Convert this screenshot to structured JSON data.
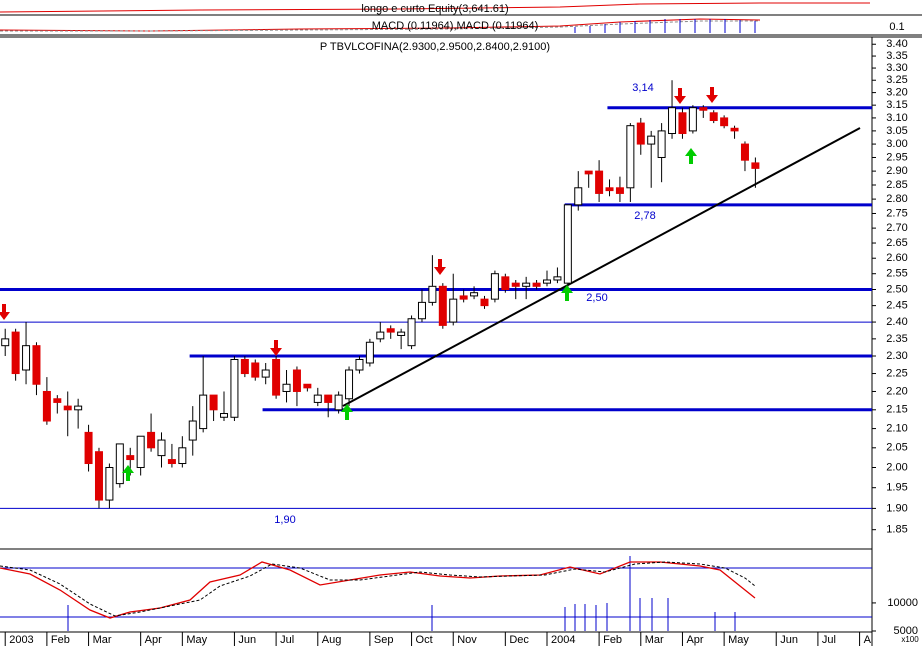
{
  "chart_data": {
    "type": "candlestick",
    "title": "P TBVLCOFINA(2.9300,2.9500,2.8400,2.9100)",
    "x": [
      0,
      1,
      2,
      3,
      4,
      5,
      6,
      7,
      8,
      9,
      10,
      11,
      12,
      13,
      14,
      15,
      16,
      17,
      18,
      19,
      20,
      21,
      22,
      23,
      24,
      25,
      26,
      27,
      28,
      29,
      30,
      31,
      32,
      33,
      34,
      35,
      36,
      37,
      38,
      39,
      40,
      41,
      42,
      43,
      44,
      45,
      46,
      47,
      48,
      49,
      50,
      51,
      52,
      53,
      54,
      55,
      56,
      57,
      58,
      59,
      60,
      61,
      62,
      63,
      64,
      65,
      66,
      67,
      68,
      69,
      70,
      71,
      72
    ],
    "open": [
      2.33,
      2.37,
      2.26,
      2.33,
      2.2,
      2.18,
      2.16,
      2.15,
      2.09,
      2.04,
      1.92,
      1.96,
      2.03,
      2.0,
      2.09,
      2.03,
      2.02,
      2.01,
      2.07,
      2.1,
      2.19,
      2.13,
      2.13,
      2.29,
      2.28,
      2.24,
      2.29,
      2.2,
      2.26,
      2.22,
      2.17,
      2.19,
      2.15,
      2.18,
      2.26,
      2.28,
      2.35,
      2.38,
      2.36,
      2.33,
      2.41,
      2.46,
      2.51,
      2.4,
      2.48,
      2.48,
      2.47,
      2.47,
      2.54,
      2.52,
      2.51,
      2.52,
      2.52,
      2.53,
      2.52,
      2.78,
      2.9,
      2.9,
      2.84,
      2.84,
      2.84,
      3.08,
      3.0,
      2.95,
      3.04,
      3.12,
      3.05,
      3.14,
      3.12,
      3.1,
      3.06,
      3.0,
      2.93
    ],
    "high": [
      2.38,
      2.38,
      2.4,
      2.34,
      2.24,
      2.19,
      2.2,
      2.18,
      2.11,
      2.05,
      2.01,
      2.06,
      2.05,
      2.08,
      2.14,
      2.09,
      2.06,
      2.08,
      2.16,
      2.3,
      2.19,
      2.2,
      2.3,
      2.3,
      2.29,
      2.28,
      2.3,
      2.26,
      2.27,
      2.22,
      2.21,
      2.19,
      2.2,
      2.27,
      2.3,
      2.35,
      2.4,
      2.39,
      2.38,
      2.42,
      2.5,
      2.61,
      2.52,
      2.55,
      2.5,
      2.51,
      2.48,
      2.56,
      2.55,
      2.53,
      2.54,
      2.53,
      2.56,
      2.57,
      2.78,
      2.9,
      2.9,
      2.94,
      2.87,
      2.88,
      3.08,
      3.1,
      3.05,
      3.08,
      3.25,
      3.14,
      3.15,
      3.15,
      3.13,
      3.11,
      3.07,
      3.01,
      2.95
    ],
    "low": [
      2.3,
      2.23,
      2.22,
      2.19,
      2.11,
      2.14,
      2.08,
      2.1,
      1.99,
      1.9,
      1.9,
      1.95,
      1.98,
      1.98,
      2.04,
      2.0,
      2.0,
      2.0,
      2.03,
      2.09,
      2.12,
      2.12,
      2.12,
      2.24,
      2.23,
      2.22,
      2.18,
      2.17,
      2.16,
      2.2,
      2.16,
      2.13,
      2.14,
      2.16,
      2.25,
      2.27,
      2.34,
      2.35,
      2.32,
      2.32,
      2.4,
      2.45,
      2.38,
      2.39,
      2.46,
      2.47,
      2.44,
      2.46,
      2.49,
      2.47,
      2.47,
      2.5,
      2.51,
      2.52,
      2.5,
      2.76,
      2.84,
      2.79,
      2.81,
      2.79,
      2.79,
      2.96,
      2.84,
      2.86,
      3.02,
      3.02,
      3.04,
      3.1,
      3.08,
      3.06,
      3.02,
      2.9,
      2.84
    ],
    "close": [
      2.35,
      2.25,
      2.33,
      2.22,
      2.12,
      2.17,
      2.15,
      2.16,
      2.01,
      1.92,
      2.0,
      2.06,
      2.02,
      2.08,
      2.05,
      2.07,
      2.01,
      2.05,
      2.12,
      2.19,
      2.15,
      2.14,
      2.29,
      2.25,
      2.24,
      2.26,
      2.19,
      2.22,
      2.2,
      2.21,
      2.19,
      2.17,
      2.19,
      2.26,
      2.29,
      2.34,
      2.37,
      2.37,
      2.37,
      2.41,
      2.46,
      2.51,
      2.39,
      2.47,
      2.47,
      2.49,
      2.45,
      2.55,
      2.5,
      2.51,
      2.52,
      2.51,
      2.53,
      2.54,
      2.78,
      2.84,
      2.89,
      2.82,
      2.83,
      2.82,
      3.07,
      3.0,
      3.03,
      3.05,
      3.14,
      3.04,
      3.14,
      3.13,
      3.09,
      3.07,
      3.05,
      2.94,
      2.91
    ],
    "up_color": "#ffffff",
    "down_color": "#e00000",
    "log": true,
    "xlim": [
      -0.5,
      83
    ],
    "ylim": [
      1.808,
      3.431
    ],
    "xticks": [
      {
        "value": 0,
        "label": "2003"
      },
      {
        "value": 4,
        "label": "Feb"
      },
      {
        "value": 8,
        "label": "Mar"
      },
      {
        "value": 13,
        "label": "Apr"
      },
      {
        "value": 17,
        "label": "May"
      },
      {
        "value": 22,
        "label": "Jun"
      },
      {
        "value": 26,
        "label": "Jul"
      },
      {
        "value": 30,
        "label": "Aug"
      },
      {
        "value": 35,
        "label": "Sep"
      },
      {
        "value": 39,
        "label": "Oct"
      },
      {
        "value": 43,
        "label": "Nov"
      },
      {
        "value": 48,
        "label": "Dec"
      },
      {
        "value": 52,
        "label": "2004"
      },
      {
        "value": 57,
        "label": "Feb"
      },
      {
        "value": 61,
        "label": "Mar"
      },
      {
        "value": 65,
        "label": "Apr"
      },
      {
        "value": 69,
        "label": "May"
      },
      {
        "value": 74,
        "label": "Jun"
      },
      {
        "value": 78,
        "label": "Jul"
      },
      {
        "value": 82,
        "label": "A"
      }
    ],
    "yticks": [
      {
        "value": 1.85,
        "label": "1.85"
      },
      {
        "value": 1.9,
        "label": "1.90"
      },
      {
        "value": 1.95,
        "label": "1.95"
      },
      {
        "value": 2.0,
        "label": "2.00"
      },
      {
        "value": 2.05,
        "label": "2.05"
      },
      {
        "value": 2.1,
        "label": "2.10"
      },
      {
        "value": 2.15,
        "label": "2.15"
      },
      {
        "value": 2.2,
        "label": "2.20"
      },
      {
        "value": 2.25,
        "label": "2.25"
      },
      {
        "value": 2.3,
        "label": "2.30"
      },
      {
        "value": 2.35,
        "label": "2.35"
      },
      {
        "value": 2.4,
        "label": "2.40"
      },
      {
        "value": 2.45,
        "label": "2.45"
      },
      {
        "value": 2.5,
        "label": "2.50"
      },
      {
        "value": 2.55,
        "label": "2.55"
      },
      {
        "value": 2.6,
        "label": "2.60"
      },
      {
        "value": 2.65,
        "label": "2.65"
      },
      {
        "value": 2.7,
        "label": "2.70"
      },
      {
        "value": 2.75,
        "label": "2.75"
      },
      {
        "value": 2.8,
        "label": "2.80"
      },
      {
        "value": 2.85,
        "label": "2.85"
      },
      {
        "value": 2.9,
        "label": "2.90"
      },
      {
        "value": 2.95,
        "label": "2.95"
      },
      {
        "value": 3.0,
        "label": "3.00"
      },
      {
        "value": 3.05,
        "label": "3.05"
      },
      {
        "value": 3.1,
        "label": "3.10"
      },
      {
        "value": 3.15,
        "label": "3.15"
      },
      {
        "value": 3.2,
        "label": "3.20"
      },
      {
        "value": 3.25,
        "label": "3.25"
      },
      {
        "value": 3.3,
        "label": "3.30"
      },
      {
        "value": 3.35,
        "label": "3.35"
      },
      {
        "value": 3.4,
        "label": "3.40"
      }
    ],
    "levels": [
      {
        "value": 3.14,
        "label": "3,14",
        "from": 57.8,
        "thick": true
      },
      {
        "value": 2.78,
        "label": "2,78",
        "from": 53.7,
        "thick": true
      },
      {
        "value": 2.5,
        "label": "2,50",
        "from": -0.5,
        "thick": true
      },
      {
        "value": 2.4,
        "from": -0.5,
        "thick": false
      },
      {
        "value": 2.3,
        "from": 17.7,
        "thick": true
      },
      {
        "value": 2.15,
        "from": 24.7,
        "thick": true
      },
      {
        "value": 1.9,
        "label": "1,90",
        "from": -0.5,
        "thick": false
      }
    ],
    "level_color": "#0000cc"
  },
  "upper_panels": {
    "equity_label": "longo e curto Equity(3,641.61)",
    "macd_label": "MACD (0.11964),MACD (0.11964)",
    "macd_yticks": [
      0.1
    ]
  },
  "lower_panel": {
    "ylim": [
      5000,
      19600
    ],
    "yticks": [
      10000,
      5000
    ],
    "unit": "x100"
  }
}
